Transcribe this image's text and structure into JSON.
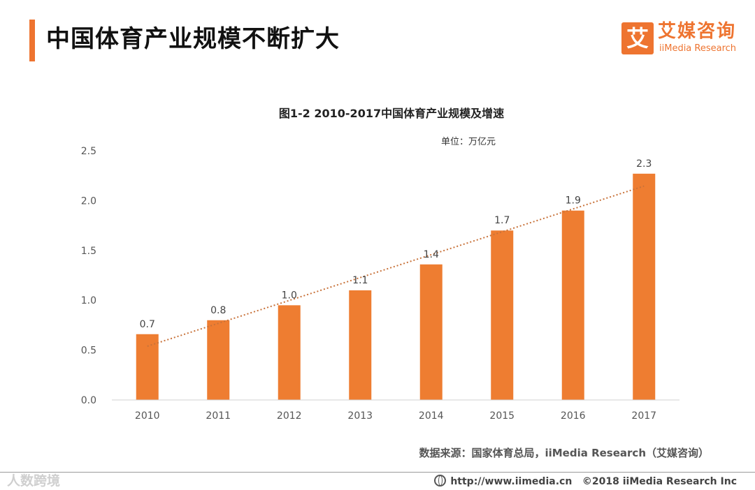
{
  "header": {
    "title": "中国体育产业规模不断扩大"
  },
  "logo": {
    "mark": "艾",
    "name_cn": "艾媒咨询",
    "name_en": "iiMedia Research"
  },
  "chart_data": {
    "type": "bar",
    "title": "图1-2 2010-2017中国体育产业规模及增速",
    "unit": "单位：万亿元",
    "categories": [
      "2010",
      "2011",
      "2012",
      "2013",
      "2014",
      "2015",
      "2016",
      "2017"
    ],
    "values": [
      0.66,
      0.8,
      0.95,
      1.1,
      1.36,
      1.7,
      1.9,
      2.27
    ],
    "data_labels": [
      "0.7",
      "0.8",
      "1.0",
      "1.1",
      "1.4",
      "1.7",
      "1.9",
      "2.3"
    ],
    "ylim": [
      0,
      2.5
    ],
    "yticks": [
      "0.0",
      "0.5",
      "1.0",
      "1.5",
      "2.0",
      "2.5"
    ],
    "trendline": {
      "type": "linear",
      "style": "dotted"
    },
    "bar_color": "#ee7d31",
    "trend_color": "#c8723a",
    "gridlines": false
  },
  "source": "数据来源：国家体育总局，iiMedia Research（艾媒咨询）",
  "footer": {
    "url": "http://www.iimedia.cn",
    "copyright": "©2018  iiMedia Research  Inc",
    "watermark": "人数跨境"
  }
}
